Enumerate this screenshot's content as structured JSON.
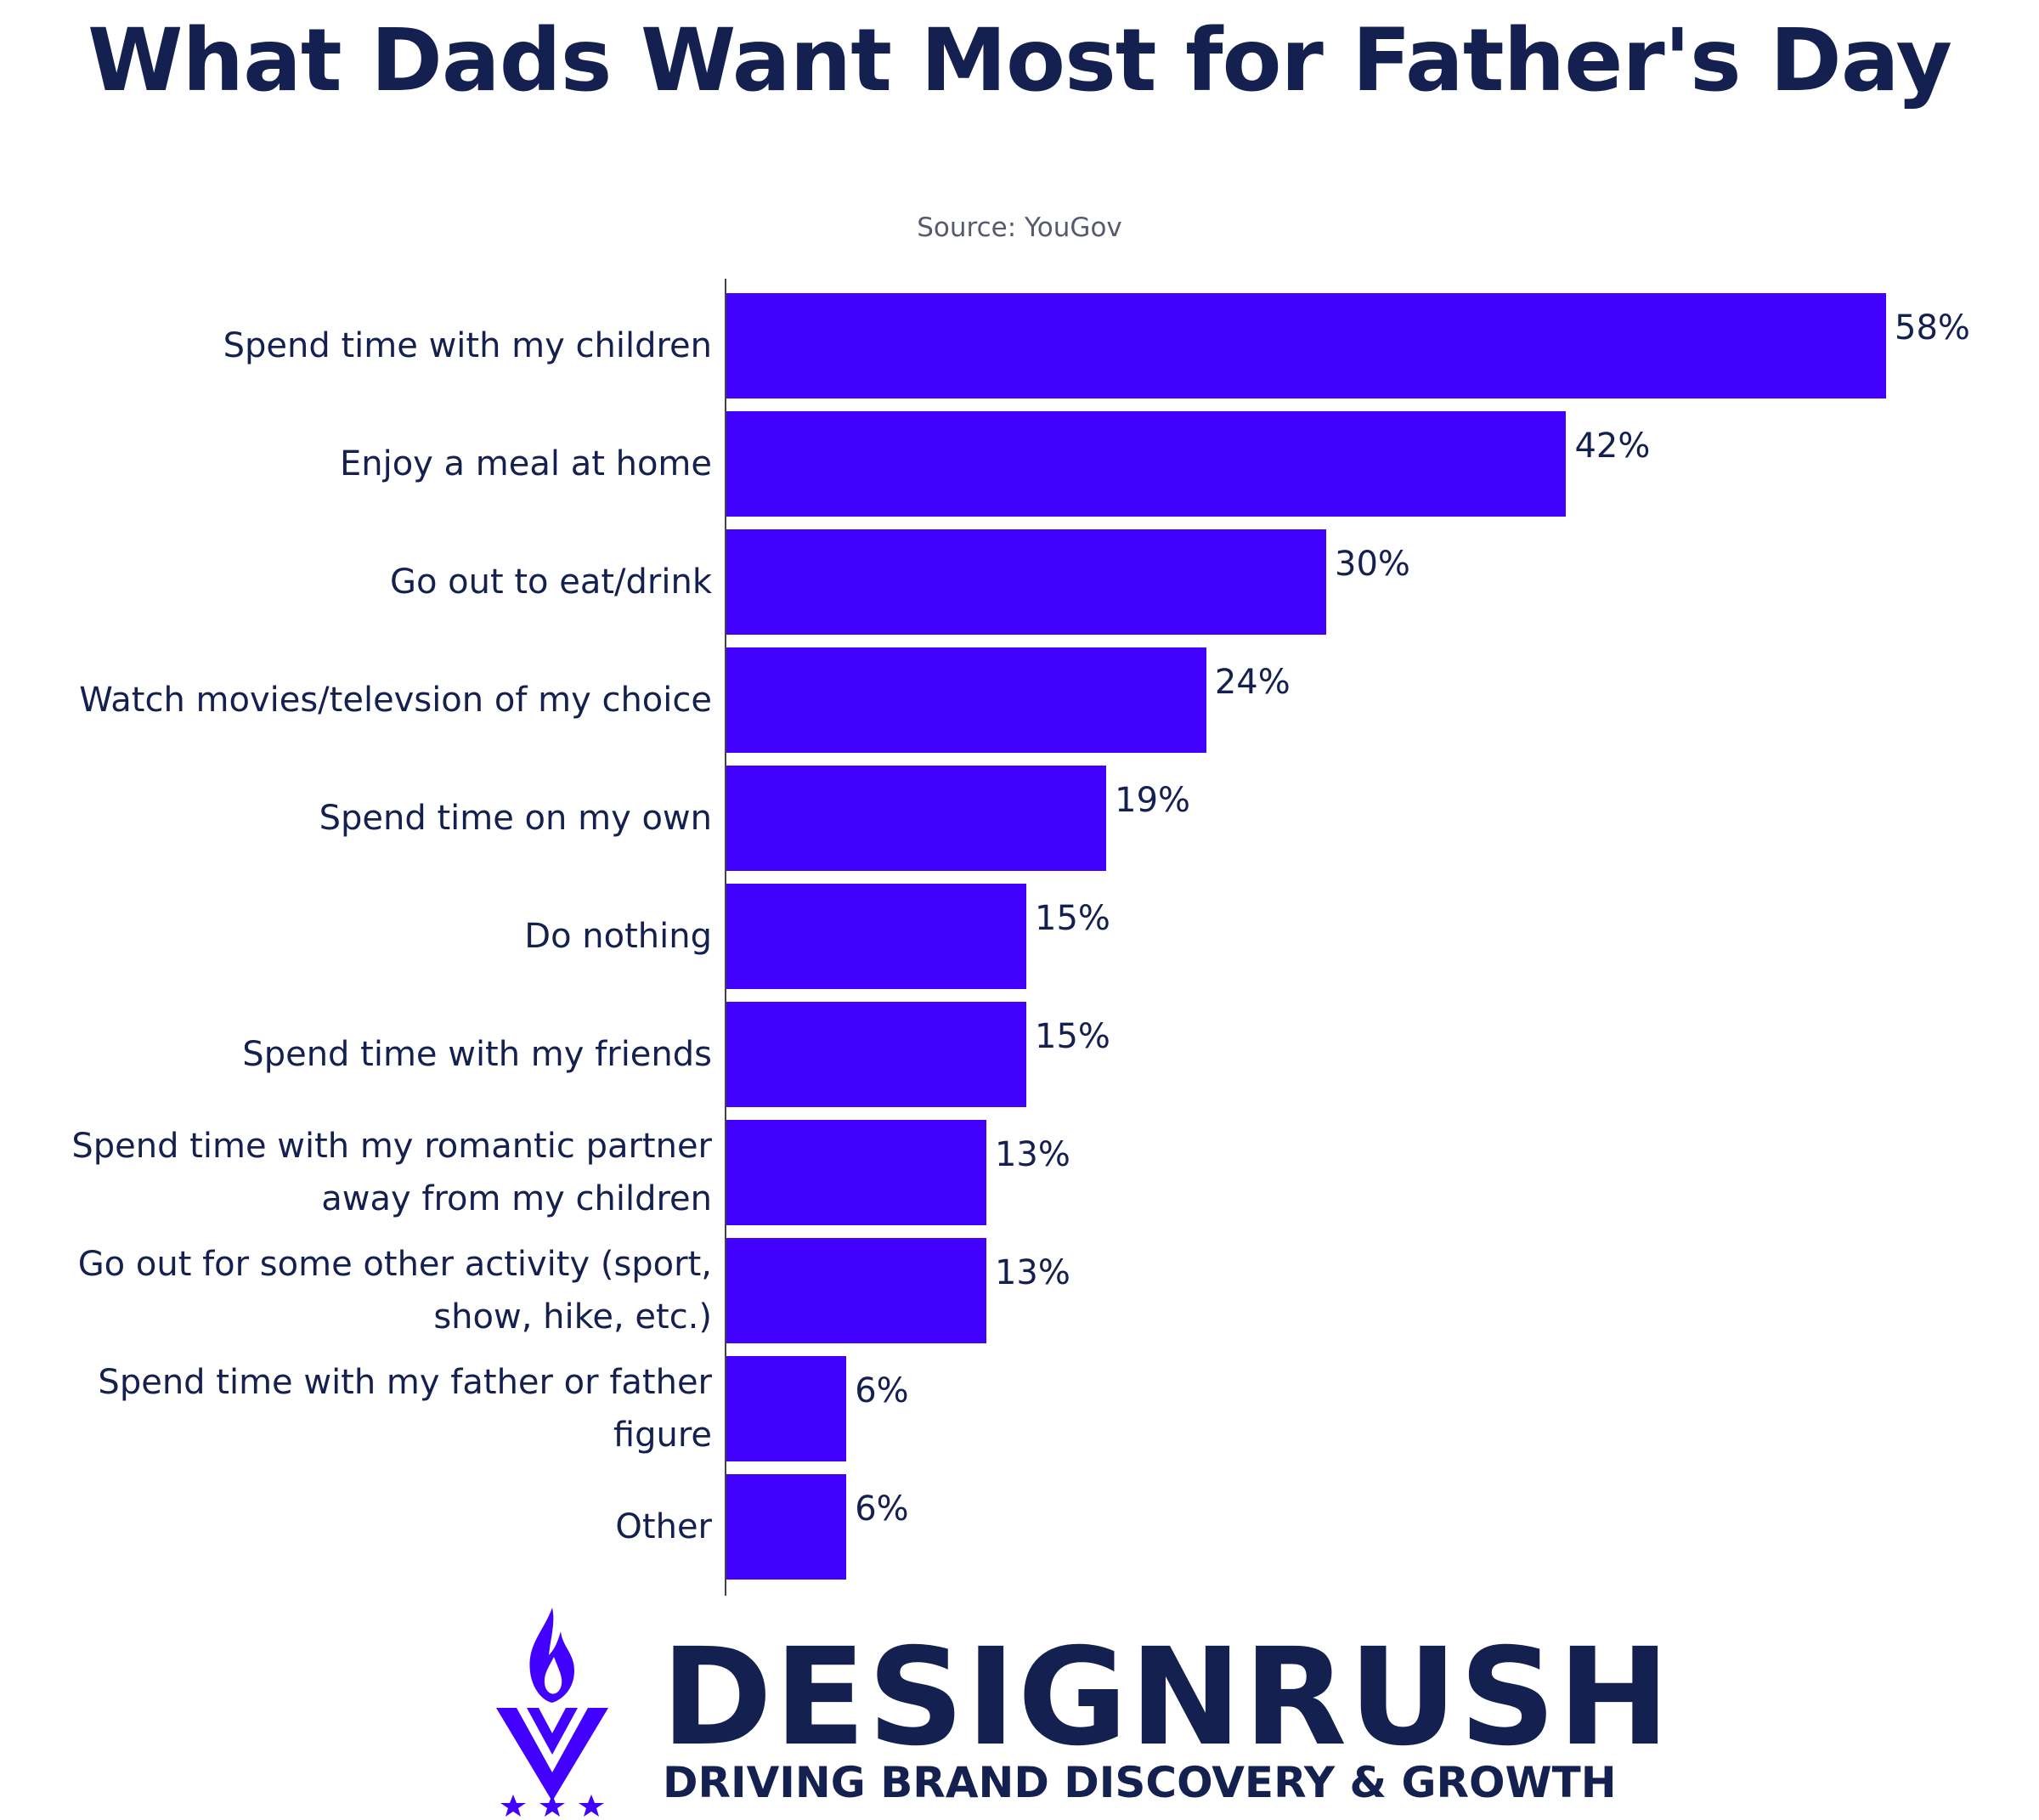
{
  "colors": {
    "bar": "#4200ff",
    "text": "#14204f",
    "subtitle": "#555a6e",
    "brand": "#14204f",
    "logo_accent": "#4200ff"
  },
  "branding": {
    "name": "DESIGNRUSH",
    "tagline": "DRIVING BRAND DISCOVERY & GROWTH",
    "logo_icon": "flame-v-emblem-icon"
  },
  "chart_data": {
    "type": "bar",
    "orientation": "horizontal",
    "title": "What Dads Want Most for Father's Day",
    "subtitle": "Source: YouGov",
    "xlabel": "",
    "ylabel": "",
    "xlim": [
      0,
      58
    ],
    "grid": false,
    "categories": [
      "Spend time with my children",
      "Enjoy a meal at home",
      "Go out to eat/drink",
      "Watch movies/televsion of my choice",
      "Spend time on my own",
      "Do nothing",
      "Spend time with my friends",
      "Spend time with my romantic partner away from my children",
      "Go out for some other activity (sport, show, hike, etc.)",
      "Spend time with my father or father figure",
      "Other"
    ],
    "values": [
      58,
      42,
      30,
      24,
      19,
      15,
      15,
      13,
      13,
      6,
      6
    ],
    "value_labels": [
      "58%",
      "42%",
      "30%",
      "24%",
      "19%",
      "15%",
      "15%",
      "13%",
      "13%",
      "6%",
      "6%"
    ]
  }
}
